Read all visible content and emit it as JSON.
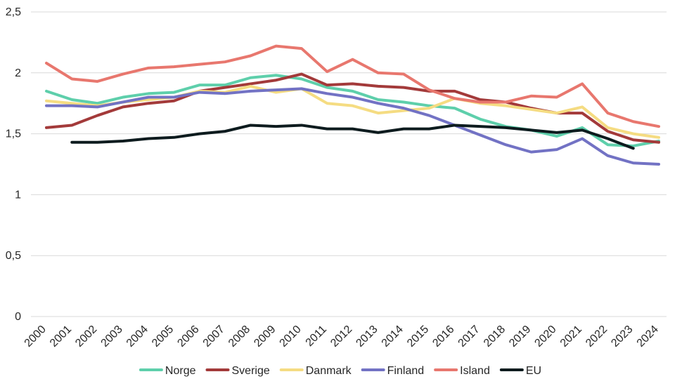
{
  "chart_data": {
    "type": "line",
    "title": "",
    "xlabel": "",
    "ylabel": "",
    "ylim": [
      0,
      2.5
    ],
    "y_ticks": [
      "0",
      "0,5",
      "1",
      "1,5",
      "2",
      "2,5"
    ],
    "y_tick_values": [
      0,
      0.5,
      1,
      1.5,
      2,
      2.5
    ],
    "grid": true,
    "legend_position": "bottom",
    "x": [
      "2000",
      "2001",
      "2002",
      "2003",
      "2004",
      "2005",
      "2006",
      "2007",
      "2008",
      "2009",
      "2010",
      "2011",
      "2012",
      "2013",
      "2014",
      "2015",
      "2016",
      "2017",
      "2018",
      "2019",
      "2020",
      "2021",
      "2022",
      "2023",
      "2024"
    ],
    "series": [
      {
        "name": "Norge",
        "color": "#5ecfab",
        "values": [
          1.85,
          1.78,
          1.75,
          1.8,
          1.83,
          1.84,
          1.9,
          1.9,
          1.96,
          1.98,
          1.95,
          1.88,
          1.85,
          1.78,
          1.76,
          1.73,
          1.71,
          1.62,
          1.56,
          1.53,
          1.48,
          1.55,
          1.41,
          1.4,
          1.44
        ]
      },
      {
        "name": "Sverige",
        "color": "#a33a3a",
        "values": [
          1.55,
          1.57,
          1.65,
          1.72,
          1.75,
          1.77,
          1.85,
          1.88,
          1.91,
          1.94,
          1.99,
          1.9,
          1.91,
          1.89,
          1.88,
          1.85,
          1.85,
          1.78,
          1.76,
          1.71,
          1.67,
          1.67,
          1.52,
          1.45,
          1.43
        ]
      },
      {
        "name": "Danmark",
        "color": "#f5dc82",
        "values": [
          1.77,
          1.75,
          1.73,
          1.76,
          1.78,
          1.8,
          1.85,
          1.84,
          1.89,
          1.84,
          1.87,
          1.75,
          1.73,
          1.67,
          1.69,
          1.71,
          1.79,
          1.75,
          1.73,
          1.7,
          1.67,
          1.72,
          1.55,
          1.5,
          1.47
        ]
      },
      {
        "name": "Finland",
        "color": "#7272c4",
        "values": [
          1.73,
          1.73,
          1.72,
          1.76,
          1.8,
          1.8,
          1.84,
          1.83,
          1.85,
          1.86,
          1.87,
          1.83,
          1.8,
          1.75,
          1.71,
          1.65,
          1.57,
          1.49,
          1.41,
          1.35,
          1.37,
          1.46,
          1.32,
          1.26,
          1.25
        ]
      },
      {
        "name": "Island",
        "color": "#e8776e",
        "values": [
          2.08,
          1.95,
          1.93,
          1.99,
          2.04,
          2.05,
          2.07,
          2.09,
          2.14,
          2.22,
          2.2,
          2.01,
          2.11,
          2.0,
          1.99,
          1.86,
          1.79,
          1.76,
          1.76,
          1.81,
          1.8,
          1.91,
          1.67,
          1.6,
          1.56
        ]
      },
      {
        "name": "EU",
        "color": "#0d1b1e",
        "values": [
          null,
          1.43,
          1.43,
          1.44,
          1.46,
          1.47,
          1.5,
          1.52,
          1.57,
          1.56,
          1.57,
          1.54,
          1.54,
          1.51,
          1.54,
          1.54,
          1.57,
          1.56,
          1.55,
          1.53,
          1.51,
          1.53,
          1.46,
          1.38,
          null
        ]
      }
    ]
  }
}
